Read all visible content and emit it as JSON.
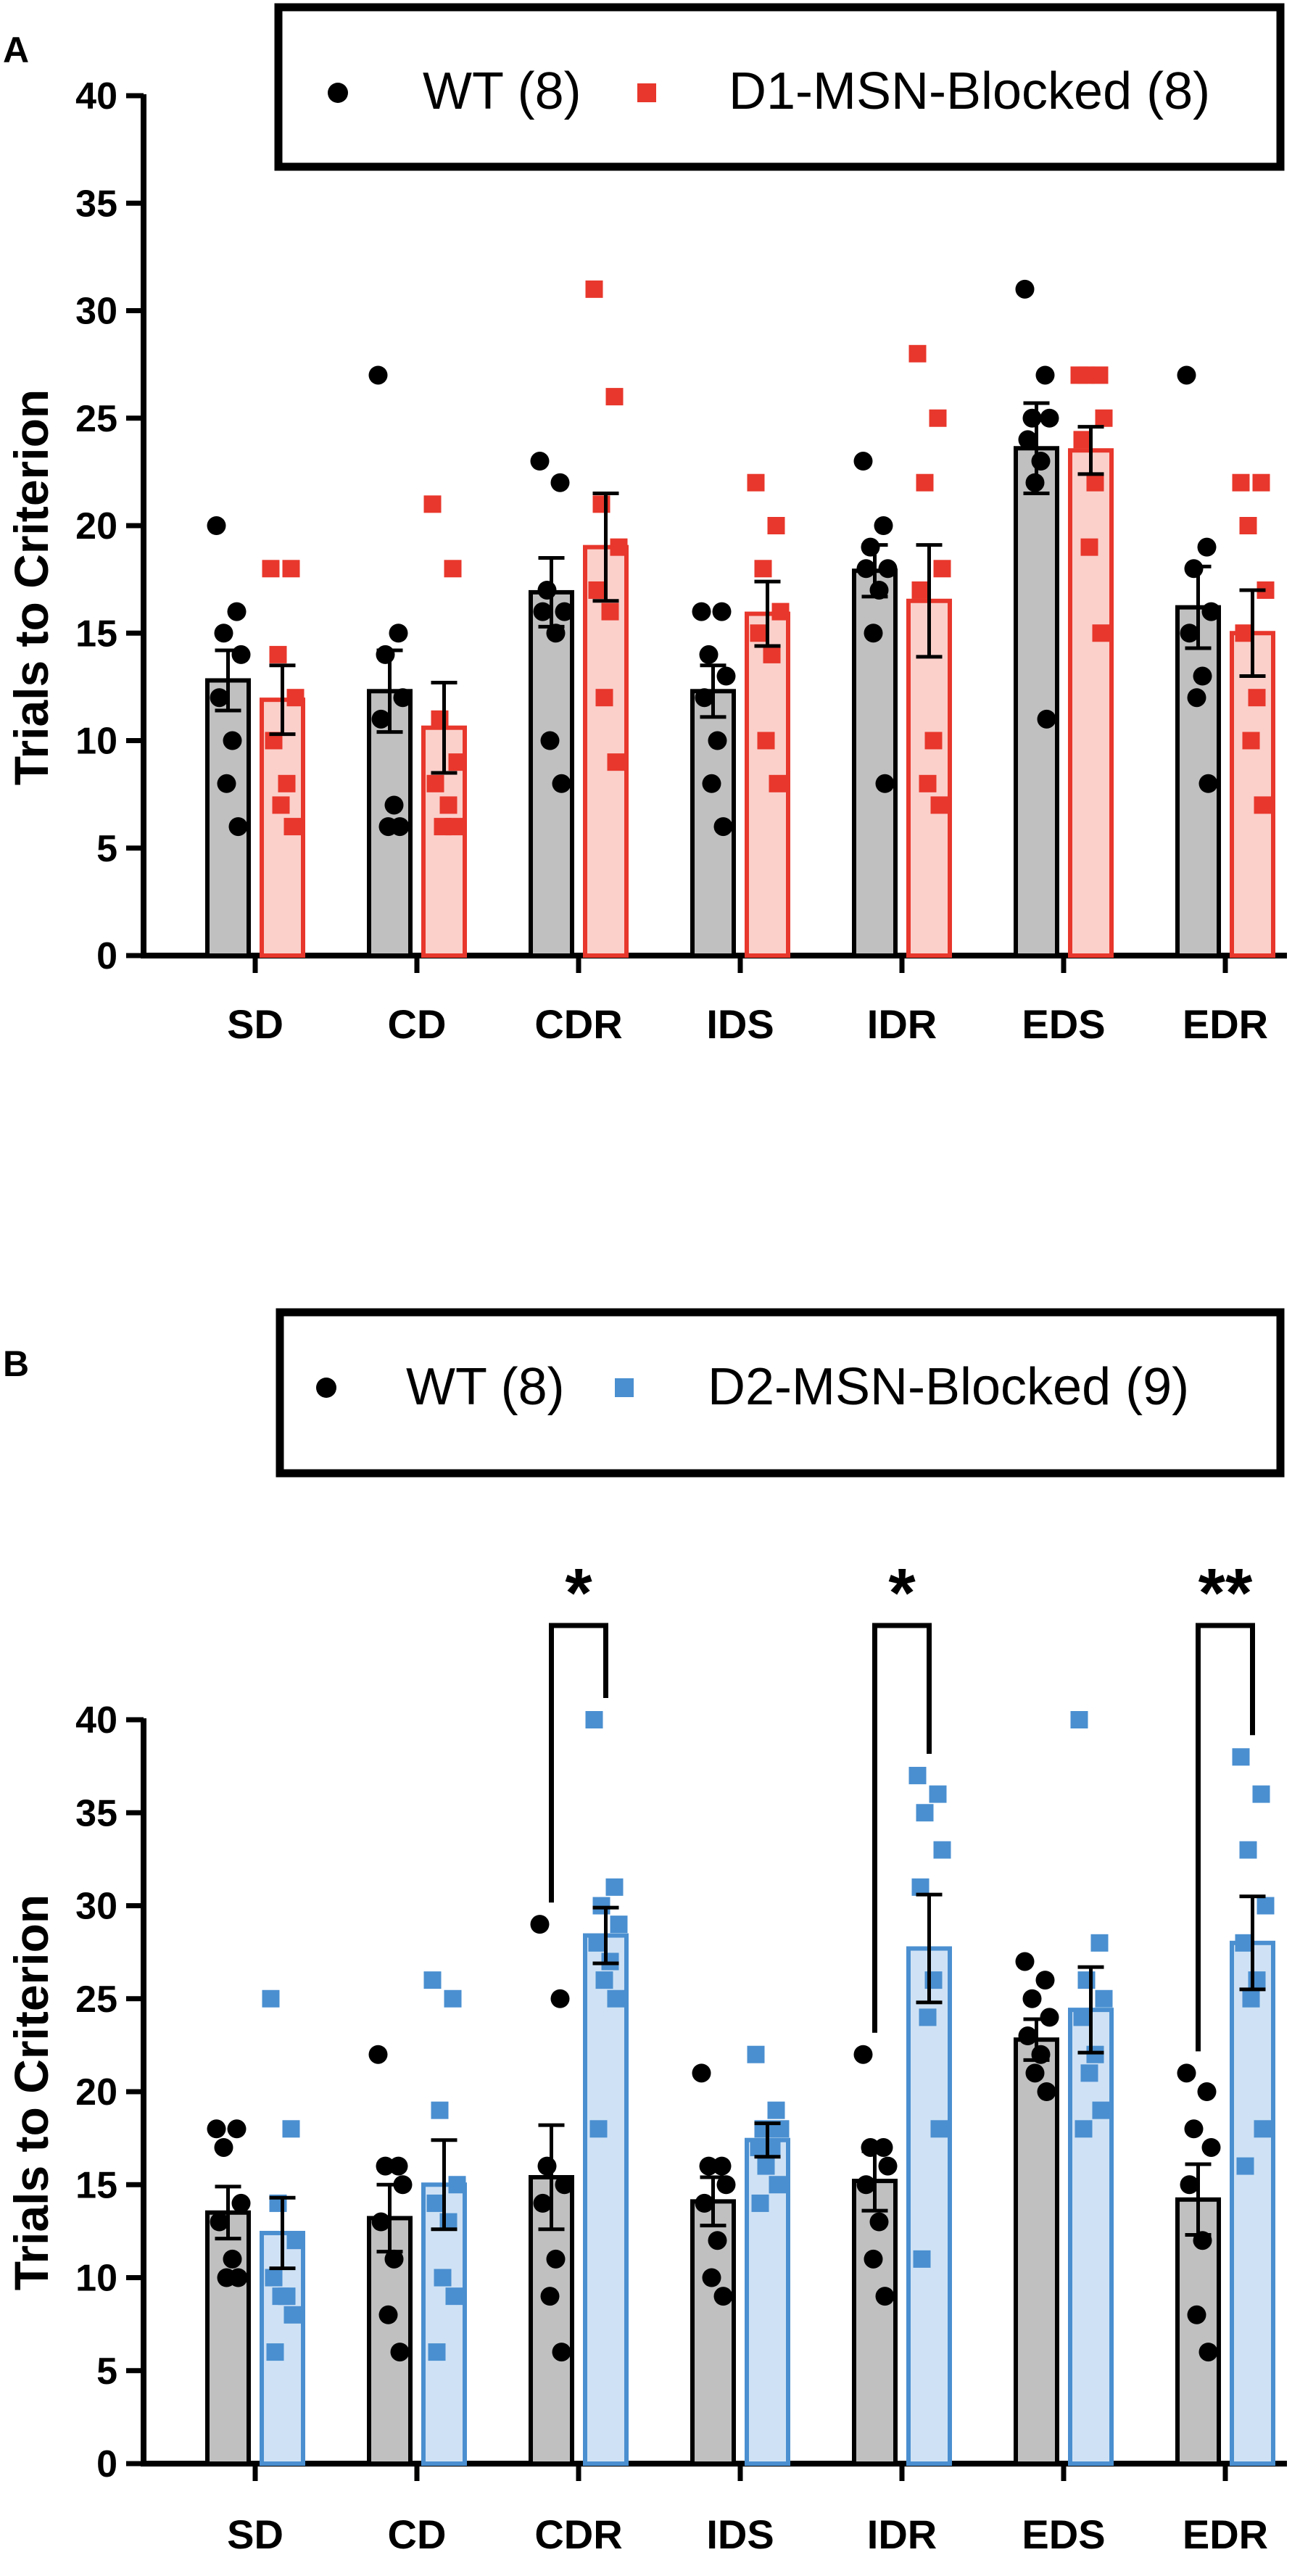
{
  "chart_data": [
    {
      "type": "bar",
      "panel": "A",
      "ylabel": "Trials  to Criterion",
      "ylim": [
        0,
        40
      ],
      "yticks": [
        "0",
        "5",
        "10",
        "15",
        "20",
        "25",
        "30",
        "35",
        "40"
      ],
      "categories": [
        "SD",
        "CD",
        "CDR",
        "IDS",
        "IDR",
        "EDS",
        "EDR"
      ],
      "legend": {
        "position": "top-right",
        "items": [
          "WT (8)",
          "D1-MSN-Blocked (8)"
        ]
      },
      "series": [
        {
          "name": "WT (8)",
          "marker": "circle",
          "point_color": "#000000",
          "bar_color": "#c0c0c0",
          "means": [
            12.8,
            12.3,
            16.9,
            12.3,
            17.9,
            23.6,
            16.2
          ],
          "sem": [
            1.4,
            1.9,
            1.6,
            1.2,
            1.2,
            2.1,
            1.9
          ],
          "points": [
            [
              20,
              16,
              15,
              14,
              12,
              10,
              8,
              6
            ],
            [
              27,
              15,
              14,
              12,
              11,
              7,
              6,
              6
            ],
            [
              23,
              22,
              17,
              16,
              16,
              15,
              10,
              8
            ],
            [
              16,
              16,
              14,
              13,
              12,
              10,
              8,
              6
            ],
            [
              23,
              20,
              19,
              18,
              18,
              17,
              15,
              8
            ],
            [
              31,
              27,
              25,
              25,
              24,
              23,
              22,
              11
            ],
            [
              27,
              19,
              18,
              16,
              15,
              13,
              12,
              8
            ]
          ]
        },
        {
          "name": "D1-MSN-Blocked (8)",
          "marker": "square",
          "point_color": "#e8372c",
          "bar_color": "#fbd0cb",
          "means": [
            11.9,
            10.6,
            19.0,
            15.9,
            16.5,
            23.5,
            15.0
          ],
          "sem": [
            1.6,
            2.1,
            2.5,
            1.5,
            2.6,
            1.1,
            2.0
          ],
          "points": [
            [
              18,
              18,
              14,
              12,
              10,
              8,
              7,
              6
            ],
            [
              21,
              18,
              11,
              9,
              8,
              7,
              6,
              6
            ],
            [
              31,
              26,
              21,
              19,
              17,
              16,
              12,
              9
            ],
            [
              22,
              20,
              18,
              16,
              15,
              14,
              10,
              8
            ],
            [
              28,
              25,
              22,
              18,
              17,
              10,
              8,
              7
            ],
            [
              27,
              27,
              27,
              25,
              24,
              22,
              19,
              15
            ],
            [
              22,
              22,
              20,
              17,
              15,
              12,
              10,
              7
            ]
          ]
        }
      ]
    },
    {
      "type": "bar",
      "panel": "B",
      "ylabel": "Trials  to Criterion",
      "ylim": [
        0,
        40
      ],
      "yticks": [
        "0",
        "5",
        "10",
        "15",
        "20",
        "25",
        "30",
        "35",
        "40"
      ],
      "categories": [
        "SD",
        "CD",
        "CDR",
        "IDS",
        "IDR",
        "EDS",
        "EDR"
      ],
      "legend": {
        "position": "top-right",
        "items": [
          "WT (8)",
          "D2-MSN-Blocked (9)"
        ]
      },
      "series": [
        {
          "name": "WT (8)",
          "marker": "circle",
          "point_color": "#000000",
          "bar_color": "#c0c0c0",
          "means": [
            13.5,
            13.2,
            15.4,
            14.1,
            15.2,
            22.8,
            14.2
          ],
          "sem": [
            1.4,
            1.8,
            2.8,
            1.3,
            1.6,
            1.1,
            1.9
          ],
          "points": [
            [
              18,
              18,
              17,
              14,
              13,
              11,
              10,
              10
            ],
            [
              22,
              16,
              16,
              15,
              13,
              11,
              8,
              6
            ],
            [
              29,
              25,
              16,
              15,
              14,
              11,
              9,
              6
            ],
            [
              21,
              16,
              16,
              15,
              14,
              12,
              10,
              9
            ],
            [
              22,
              17,
              17,
              16,
              15,
              13,
              11,
              9
            ],
            [
              27,
              26,
              25,
              24,
              23,
              22,
              21,
              20
            ],
            [
              21,
              20,
              18,
              17,
              15,
              12,
              8,
              6
            ]
          ]
        },
        {
          "name": "D2-MSN-Blocked (9)",
          "marker": "square",
          "point_color": "#4a8fd0",
          "bar_color": "#cfe2f5",
          "means": [
            12.4,
            15.0,
            28.4,
            17.4,
            27.7,
            24.4,
            28.0
          ],
          "sem": [
            1.9,
            2.4,
            1.5,
            0.9,
            2.9,
            2.3,
            2.5
          ],
          "points": [
            [
              25,
              18,
              14,
              12,
              10,
              9,
              9,
              8,
              6
            ],
            [
              26,
              25,
              19,
              15,
              14,
              13,
              10,
              9,
              6
            ],
            [
              40,
              31,
              30,
              29,
              28,
              27,
              26,
              25,
              18
            ],
            [
              22,
              19,
              18,
              18,
              17,
              17,
              16,
              15,
              14
            ],
            [
              37,
              36,
              35,
              33,
              31,
              26,
              24,
              18,
              11
            ],
            [
              40,
              28,
              26,
              25,
              24,
              22,
              21,
              19,
              18
            ],
            [
              38,
              36,
              33,
              30,
              28,
              26,
              25,
              18,
              16
            ]
          ]
        }
      ],
      "significance": [
        {
          "category": "CDR",
          "label": "*"
        },
        {
          "category": "IDR",
          "label": "*"
        },
        {
          "category": "EDR",
          "label": "**"
        }
      ]
    }
  ]
}
